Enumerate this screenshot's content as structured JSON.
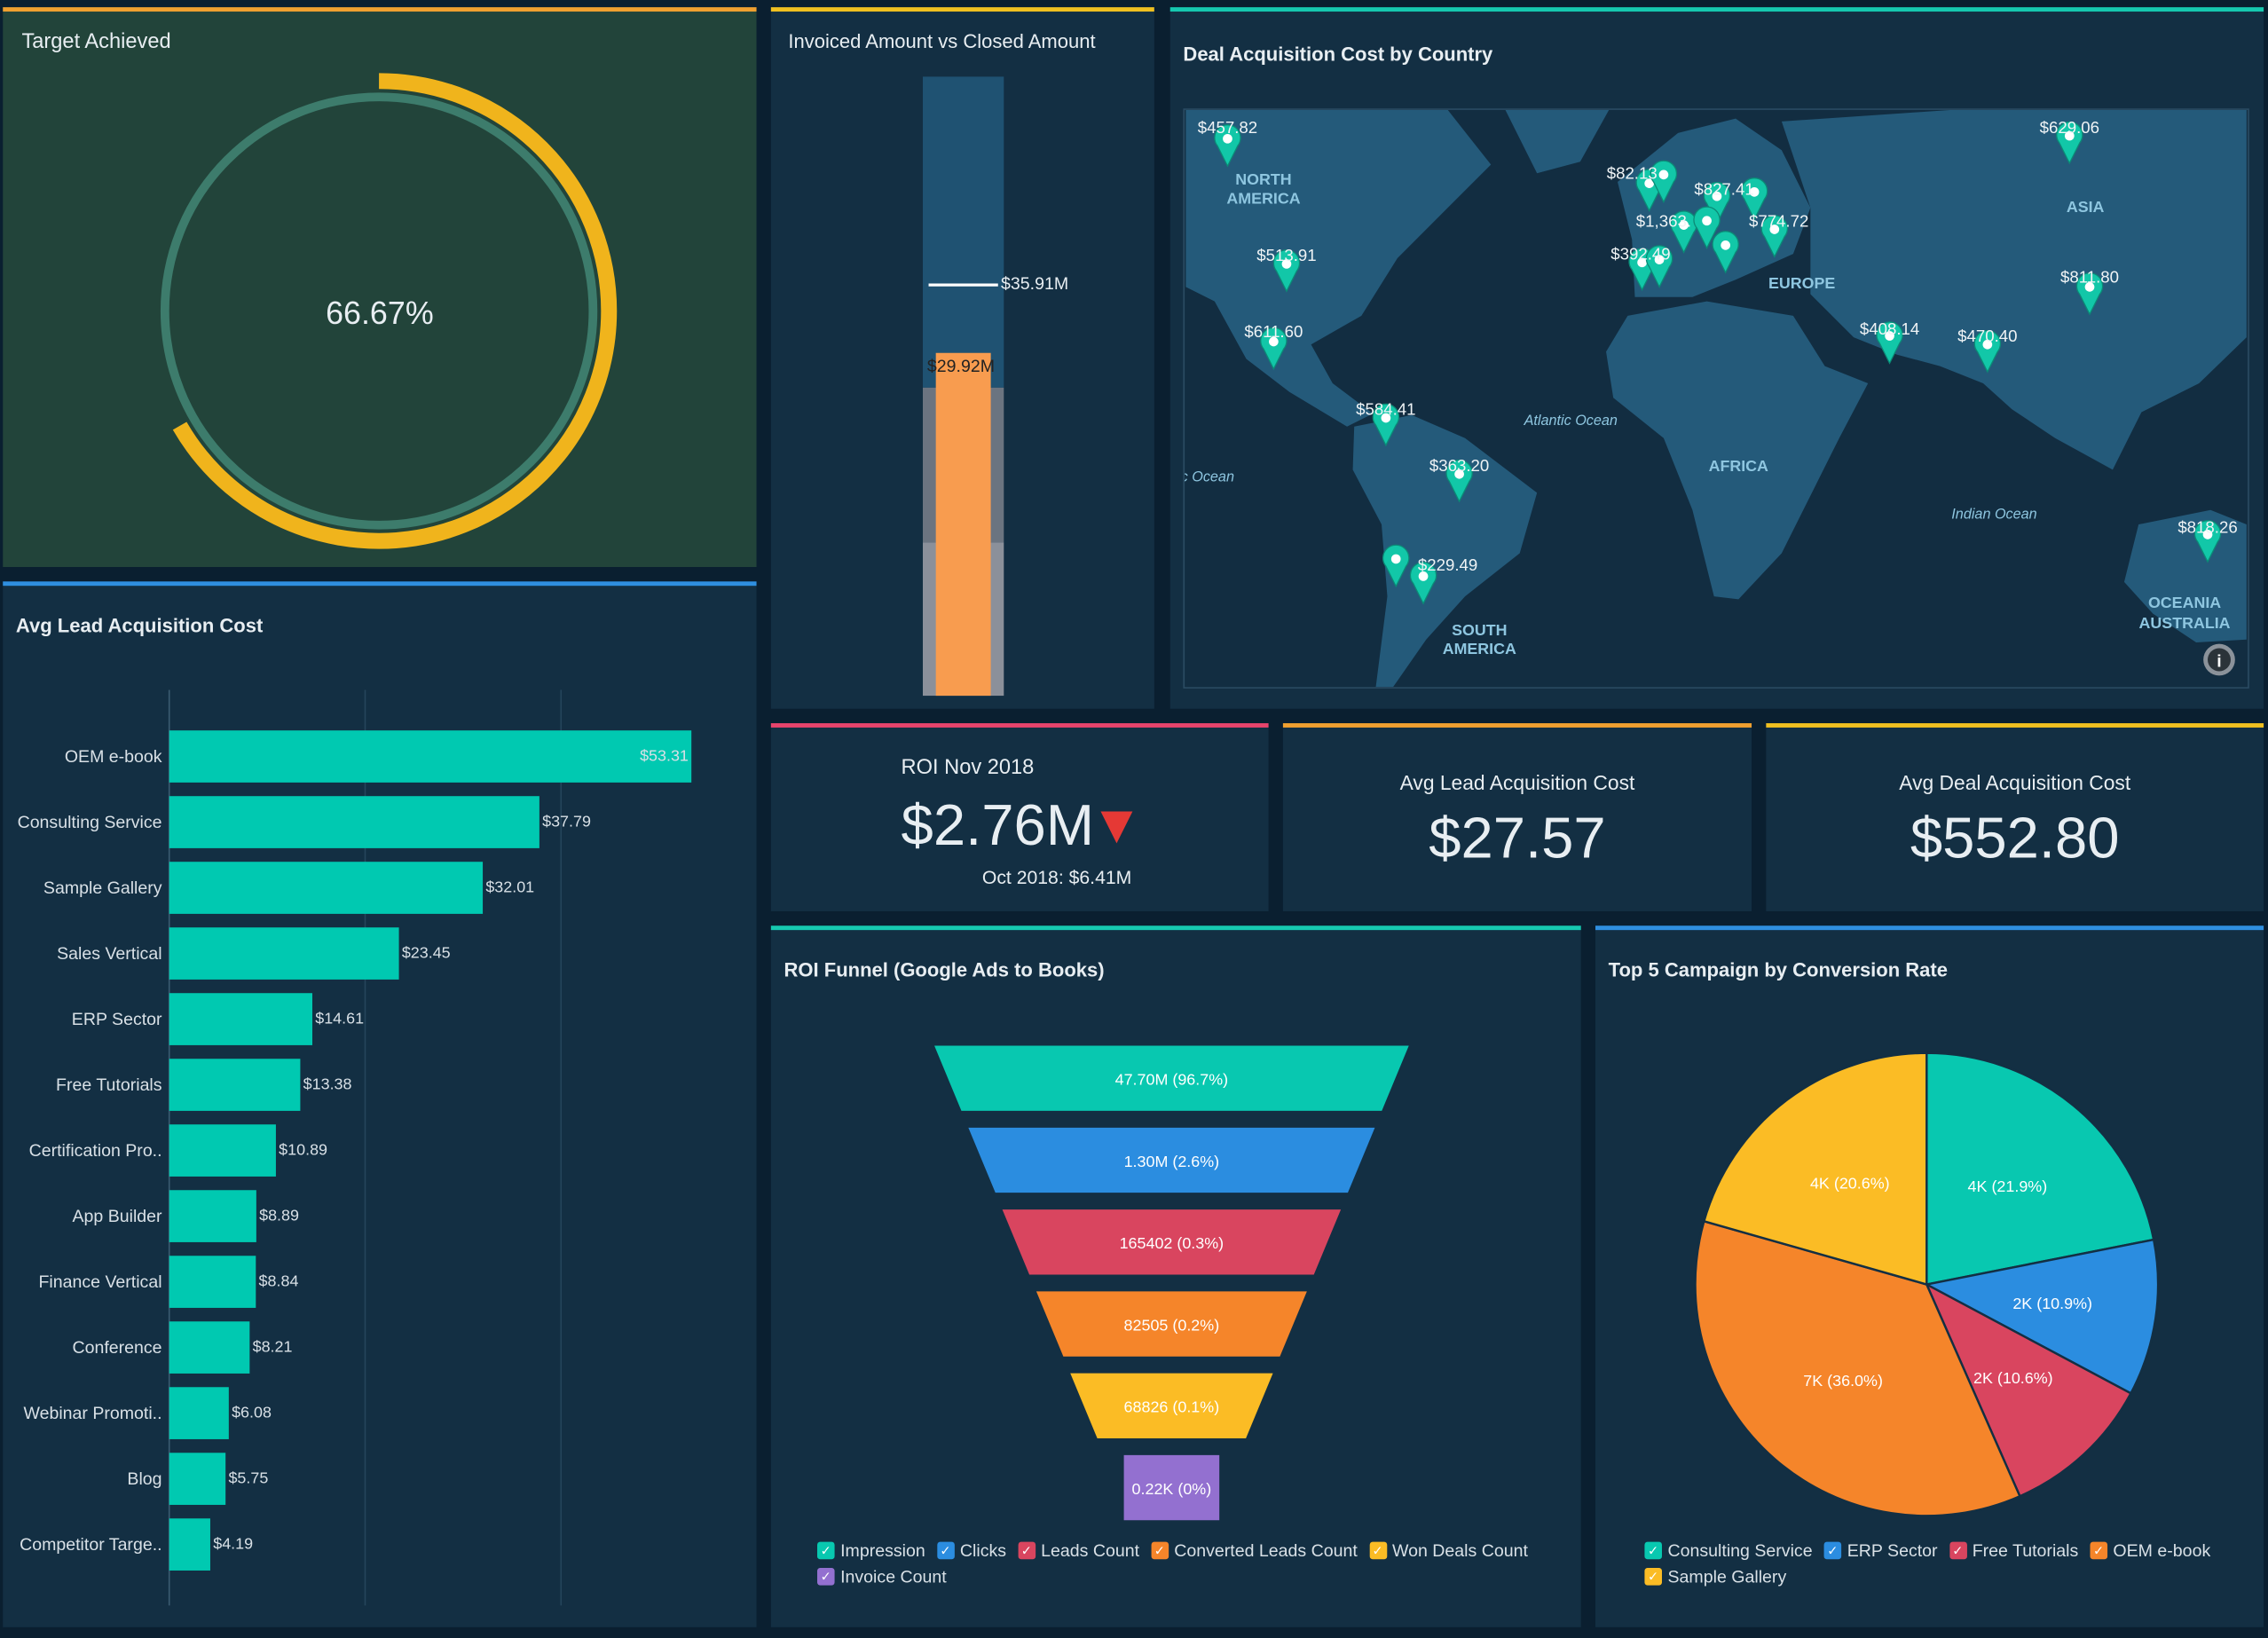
{
  "target": {
    "title": "Target Achieved",
    "value_label": "66.67%",
    "fraction": 0.6667,
    "colors": {
      "arc": "#f0b41c",
      "ring": "#3d7c6c",
      "bg": "#22443a"
    }
  },
  "invoiced": {
    "title": "Invoiced Amount vs Closed Amount",
    "target_label": "$35.91M",
    "value_label": "$29.92M",
    "target": 35.91,
    "value": 29.92,
    "max": 54,
    "bands": [
      20,
      34
    ],
    "bar_color": "#f89c4f"
  },
  "map": {
    "title": "Deal Acquisition Cost by Country",
    "regions": [
      "NORTH",
      "AMERICA",
      "SOUTH",
      "AMERICA",
      "EUROPE",
      "AFRICA",
      "ASIA",
      "OCEANIA",
      "AUSTRALIA"
    ],
    "oceans": [
      "Atlantic Ocean",
      "Indian Ocean",
      "Pacific Ocean"
    ],
    "markers": [
      "$457.82",
      "$82.13",
      "$827.41",
      "$1,363.",
      "$774.72",
      "$392.49",
      "$513.91",
      "$611.60",
      "$584.41",
      "$363.20",
      "$229.49",
      "$408.14",
      "$470.40",
      "$629.06",
      "$811.80",
      "$818.26"
    ],
    "info_icon": "info-icon",
    "marker_color": "#12c7a8"
  },
  "roi": {
    "title": "ROI Nov 2018",
    "value": "$2.76M",
    "trend": "down",
    "previous": "Oct 2018: $6.41M",
    "trend_color": "#e53935"
  },
  "avg_lead_kpi": {
    "title": "Avg Lead Acquisition Cost",
    "value": "$27.57"
  },
  "avg_deal_kpi": {
    "title": "Avg Deal Acquisition Cost",
    "value": "$552.80"
  },
  "chart_data": [
    {
      "type": "bar",
      "title": "Avg Lead Acquisition Cost",
      "orientation": "horizontal",
      "color": "#00c9b1",
      "categories": [
        "OEM e-book",
        "Consulting Service",
        "Sample Gallery",
        "Sales Vertical",
        "ERP Sector",
        "Free Tutorials",
        "Certification Pro..",
        "App Builder",
        "Finance Vertical",
        "Conference",
        "Webinar Promoti..",
        "Blog",
        "Competitor Targe.."
      ],
      "values": [
        53.31,
        37.79,
        32.01,
        23.45,
        14.61,
        13.38,
        10.89,
        8.89,
        8.84,
        8.21,
        6.08,
        5.75,
        4.19
      ],
      "labels": [
        "$53.31",
        "$37.79",
        "$32.01",
        "$23.45",
        "$14.61",
        "$13.38",
        "$10.89",
        "$8.89",
        "$8.84",
        "$8.21",
        "$6.08",
        "$5.75",
        "$4.19"
      ],
      "xlim": [
        0,
        60
      ],
      "grid": true
    },
    {
      "type": "funnel",
      "title": "ROI Funnel (Google Ads to Books)",
      "categories": [
        "Impression",
        "Clicks",
        "Leads Count",
        "Converted Leads Count",
        "Won Deals Count",
        "Invoice Count"
      ],
      "labels": [
        "47.70M (96.7%)",
        "1.30M (2.6%)",
        "165402 (0.3%)",
        "82505 (0.2%)",
        "68826 (0.1%)",
        "0.22K (0%)"
      ],
      "colors": [
        "#08c8b0",
        "#2b8de0",
        "#d9455f",
        "#f5852a",
        "#fbbc25",
        "#9370d0"
      ],
      "legend": "bottom"
    },
    {
      "type": "pie",
      "title": "Top 5 Campaign by Conversion Rate",
      "categories": [
        "Consulting Service",
        "ERP Sector",
        "Free Tutorials",
        "OEM e-book",
        "Sample Gallery"
      ],
      "values": [
        21.9,
        10.9,
        10.6,
        36.0,
        20.6
      ],
      "labels": [
        "4K (21.9%)",
        "2K (10.9%)",
        "2K (10.6%)",
        "7K (36.0%)",
        "4K (20.6%)"
      ],
      "colors": [
        "#08c8b0",
        "#2b8de0",
        "#d9455f",
        "#f5852a",
        "#fbbc25"
      ],
      "legend": "bottom"
    }
  ]
}
